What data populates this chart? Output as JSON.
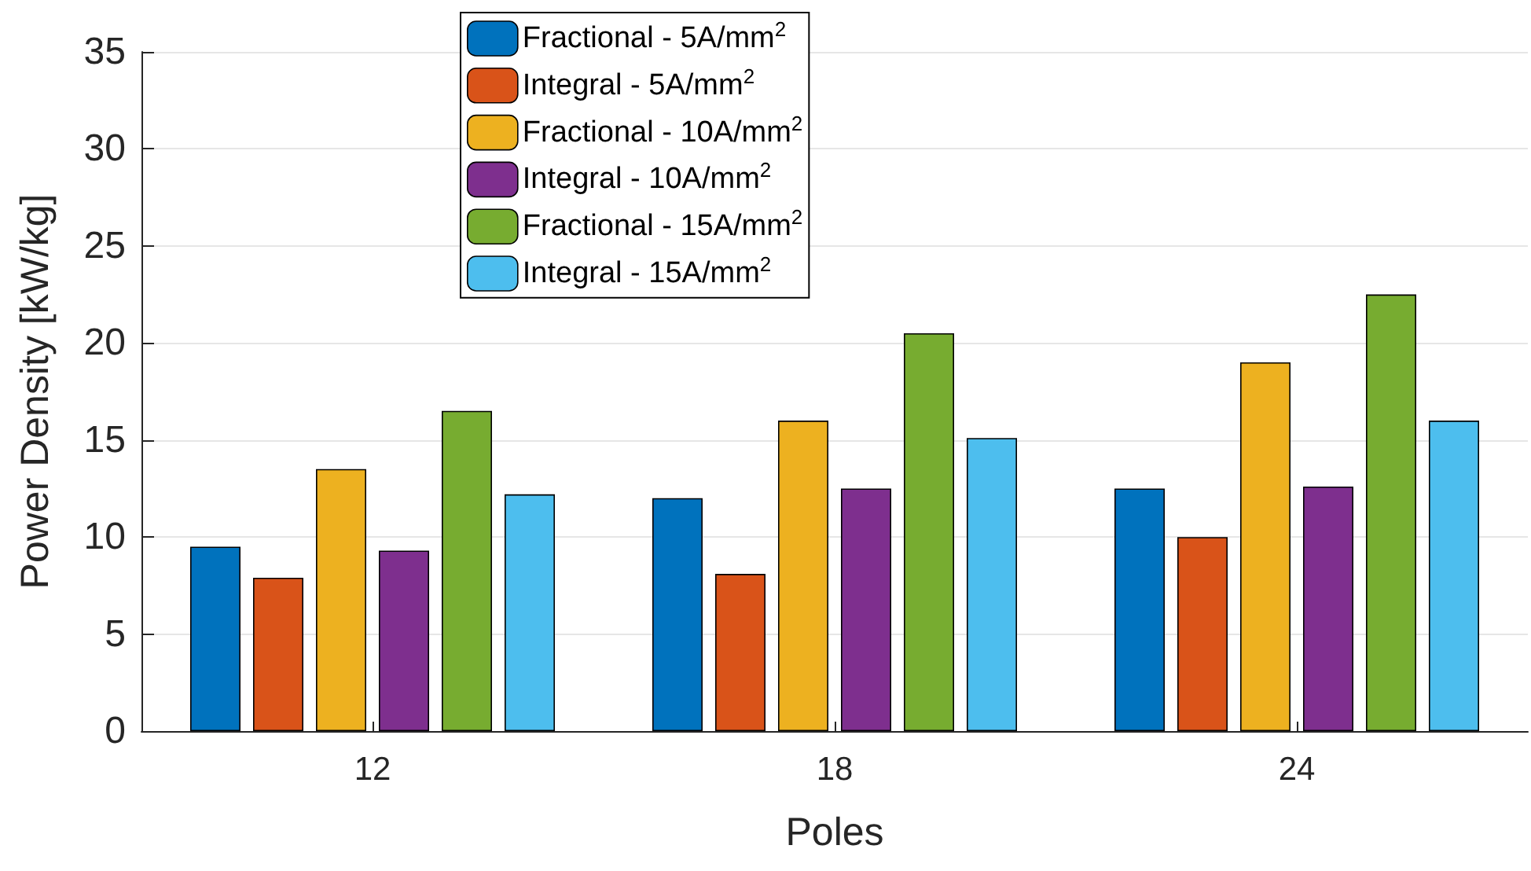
{
  "chart_data": {
    "type": "bar",
    "xlabel": "Poles",
    "ylabel": "Power Density [kW/kg]",
    "categories": [
      "12",
      "18",
      "24"
    ],
    "series": [
      {
        "name": "Fractional - 5A/mm$^{2}$",
        "color": "#0072bd",
        "values": [
          9.5,
          12.0,
          12.5
        ]
      },
      {
        "name": "Integral - 5A/mm$^{2}$",
        "color": "#d95319",
        "values": [
          7.9,
          8.1,
          10.0
        ]
      },
      {
        "name": "Fractional - 10A/mm$^{2}$",
        "color": "#edb120",
        "values": [
          13.5,
          16.0,
          19.0
        ]
      },
      {
        "name": "Integral - 10A/mm$^{2}$",
        "color": "#7e2f8e",
        "values": [
          9.3,
          12.5,
          12.6
        ]
      },
      {
        "name": "Fractional - 15A/mm$^{2}$",
        "color": "#77ac30",
        "values": [
          16.5,
          20.5,
          22.5
        ]
      },
      {
        "name": "Integral - 15A/mm$^{2}$",
        "color": "#4dbeee",
        "values": [
          12.2,
          15.1,
          16.0
        ]
      }
    ],
    "ylim": [
      0,
      35
    ],
    "yticks": [
      0,
      5,
      10,
      15,
      20,
      25,
      30,
      35
    ],
    "grid": "y",
    "legend": "top"
  }
}
